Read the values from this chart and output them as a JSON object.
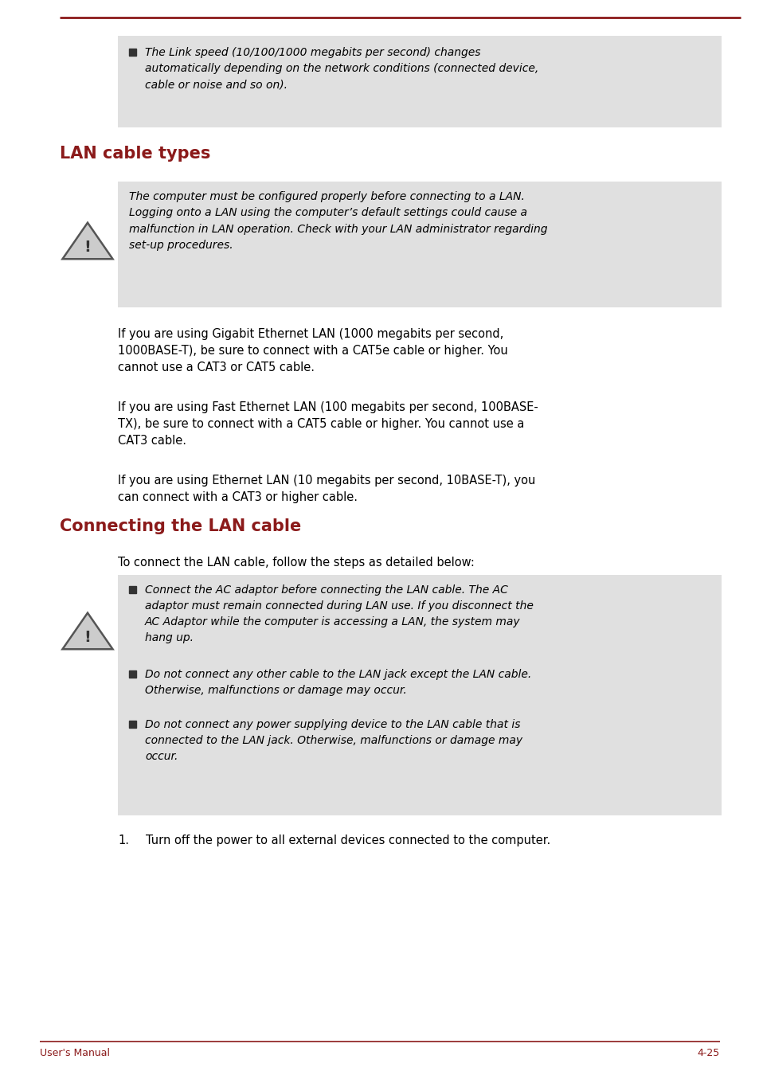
{
  "bg_color": "#ffffff",
  "top_line_color": "#8B1A1A",
  "heading_color": "#8B1A1A",
  "text_color": "#000000",
  "footer_text_color": "#8B1A1A",
  "box_bg_color": "#E0E0E0",
  "page_width": 9.54,
  "page_height": 13.45,
  "section1_title": "LAN cable types",
  "section2_title": "Connecting the LAN cable",
  "footer_left": "User's Manual",
  "footer_right": "4-25",
  "bullet_box1_text": "The Link speed (10/100/1000 megabits per second) changes\nautomatically depending on the network conditions (connected device,\ncable or noise and so on).",
  "warning_box1_text": "The computer must be configured properly before connecting to a LAN.\nLogging onto a LAN using the computer’s default settings could cause a\nmalfunction in LAN operation. Check with your LAN administrator regarding\nset-up procedures.",
  "body_para1": "If you are using Gigabit Ethernet LAN (1000 megabits per second,\n1000BASE-T), be sure to connect with a CAT5e cable or higher. You\ncannot use a CAT3 or CAT5 cable.",
  "body_para2": "If you are using Fast Ethernet LAN (100 megabits per second, 100BASE-\nTX), be sure to connect with a CAT5 cable or higher. You cannot use a\nCAT3 cable.",
  "body_para3": "If you are using Ethernet LAN (10 megabits per second, 10BASE-T), you\ncan connect with a CAT3 or higher cable.",
  "connecting_intro": "To connect the LAN cable, follow the steps as detailed below:",
  "warning_box2_bullet1": "Connect the AC adaptor before connecting the LAN cable. The AC\nadaptor must remain connected during LAN use. If you disconnect the\nAC Adaptor while the computer is accessing a LAN, the system may\nhang up.",
  "warning_box2_bullet2": "Do not connect any other cable to the LAN jack except the LAN cable.\nOtherwise, malfunctions or damage may occur.",
  "warning_box2_bullet3": "Do not connect any power supplying device to the LAN cable that is\nconnected to the LAN jack. Otherwise, malfunctions or damage may\noccur.",
  "numbered_item1": "Turn off the power to all external devices connected to the computer."
}
